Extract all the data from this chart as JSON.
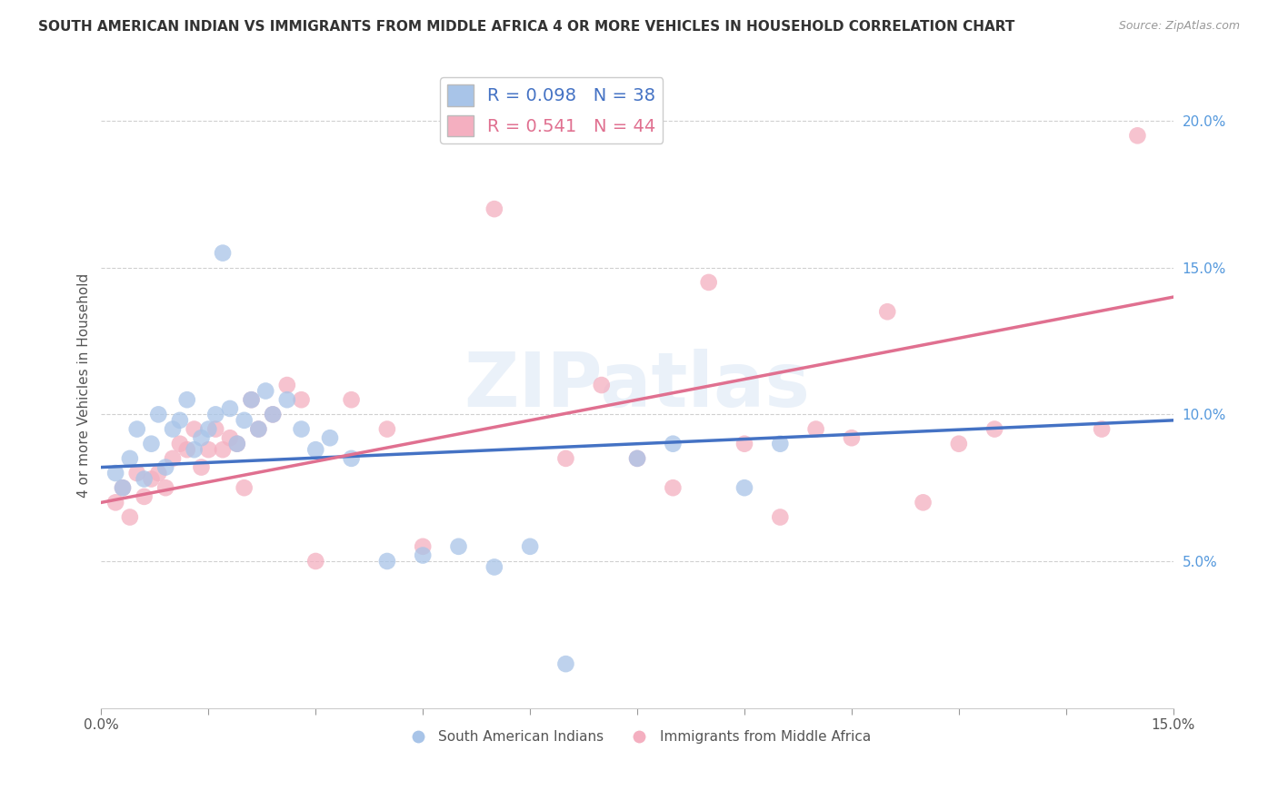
{
  "title": "SOUTH AMERICAN INDIAN VS IMMIGRANTS FROM MIDDLE AFRICA 4 OR MORE VEHICLES IN HOUSEHOLD CORRELATION CHART",
  "source": "Source: ZipAtlas.com",
  "ylabel": "4 or more Vehicles in Household",
  "xmin": 0.0,
  "xmax": 15.0,
  "ymin": 0.0,
  "ymax": 22.0,
  "yticks_right": [
    5.0,
    10.0,
    15.0,
    20.0
  ],
  "ytick_labels_right": [
    "5.0%",
    "10.0%",
    "15.0%",
    "20.0%"
  ],
  "blue_R": 0.098,
  "blue_N": 38,
  "pink_R": 0.541,
  "pink_N": 44,
  "blue_color": "#a8c4e8",
  "pink_color": "#f4afc0",
  "blue_line_color": "#4472c4",
  "pink_line_color": "#e07090",
  "legend_blue_label": "South American Indians",
  "legend_pink_label": "Immigrants from Middle Africa",
  "watermark_text": "ZIPatlas",
  "background_color": "#ffffff",
  "blue_scatter_x": [
    0.2,
    0.3,
    0.4,
    0.5,
    0.6,
    0.7,
    0.8,
    0.9,
    1.0,
    1.1,
    1.2,
    1.3,
    1.4,
    1.5,
    1.6,
    1.7,
    1.8,
    1.9,
    2.0,
    2.1,
    2.2,
    2.3,
    2.4,
    2.6,
    2.8,
    3.0,
    3.2,
    3.5,
    4.0,
    4.5,
    5.0,
    5.5,
    6.0,
    6.5,
    7.5,
    8.0,
    9.0,
    9.5
  ],
  "blue_scatter_y": [
    8.0,
    7.5,
    8.5,
    9.5,
    7.8,
    9.0,
    10.0,
    8.2,
    9.5,
    9.8,
    10.5,
    8.8,
    9.2,
    9.5,
    10.0,
    15.5,
    10.2,
    9.0,
    9.8,
    10.5,
    9.5,
    10.8,
    10.0,
    10.5,
    9.5,
    8.8,
    9.2,
    8.5,
    5.0,
    5.2,
    5.5,
    4.8,
    5.5,
    1.5,
    8.5,
    9.0,
    7.5,
    9.0
  ],
  "pink_scatter_x": [
    0.2,
    0.3,
    0.4,
    0.5,
    0.6,
    0.7,
    0.8,
    0.9,
    1.0,
    1.1,
    1.2,
    1.3,
    1.4,
    1.5,
    1.6,
    1.7,
    1.8,
    1.9,
    2.0,
    2.1,
    2.2,
    2.4,
    2.6,
    2.8,
    3.0,
    3.5,
    4.0,
    4.5,
    5.5,
    6.5,
    7.0,
    7.5,
    8.0,
    8.5,
    9.0,
    9.5,
    10.0,
    10.5,
    11.0,
    11.5,
    12.0,
    12.5,
    14.0,
    14.5
  ],
  "pink_scatter_y": [
    7.0,
    7.5,
    6.5,
    8.0,
    7.2,
    7.8,
    8.0,
    7.5,
    8.5,
    9.0,
    8.8,
    9.5,
    8.2,
    8.8,
    9.5,
    8.8,
    9.2,
    9.0,
    7.5,
    10.5,
    9.5,
    10.0,
    11.0,
    10.5,
    5.0,
    10.5,
    9.5,
    5.5,
    17.0,
    8.5,
    11.0,
    8.5,
    7.5,
    14.5,
    9.0,
    6.5,
    9.5,
    9.2,
    13.5,
    7.0,
    9.0,
    9.5,
    9.5,
    19.5
  ],
  "blue_line_x0": 0.0,
  "blue_line_x1": 15.0,
  "blue_line_y0": 8.2,
  "blue_line_y1": 9.8,
  "pink_line_x0": 0.0,
  "pink_line_x1": 15.0,
  "pink_line_y0": 7.0,
  "pink_line_y1": 14.0,
  "xtick_positions": [
    0.0,
    1.5,
    3.0,
    4.5,
    6.0,
    7.5,
    9.0,
    10.5,
    12.0,
    13.5,
    15.0
  ],
  "num_xticks": 11
}
